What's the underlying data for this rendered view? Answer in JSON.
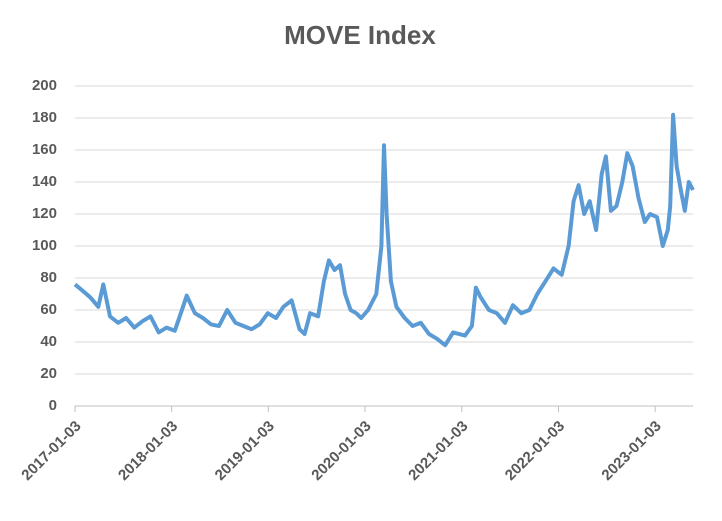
{
  "chart_data": {
    "type": "line",
    "title": "MOVE Index",
    "x": [
      "2017-01-03",
      "2017-02-01",
      "2017-03-01",
      "2017-04-01",
      "2017-04-20",
      "2017-05-15",
      "2017-06-15",
      "2017-07-15",
      "2017-08-15",
      "2017-09-15",
      "2017-10-15",
      "2017-11-15",
      "2017-12-15",
      "2018-01-15",
      "2018-02-15",
      "2018-03-01",
      "2018-04-01",
      "2018-05-01",
      "2018-06-01",
      "2018-07-01",
      "2018-08-01",
      "2018-09-01",
      "2018-10-01",
      "2018-11-01",
      "2018-12-01",
      "2019-01-01",
      "2019-02-01",
      "2019-03-01",
      "2019-04-01",
      "2019-05-01",
      "2019-05-20",
      "2019-06-10",
      "2019-07-10",
      "2019-08-01",
      "2019-08-20",
      "2019-09-10",
      "2019-10-01",
      "2019-10-20",
      "2019-11-10",
      "2019-12-01",
      "2019-12-20",
      "2020-01-15",
      "2020-02-15",
      "2020-03-05",
      "2020-03-15",
      "2020-03-25",
      "2020-04-10",
      "2020-05-01",
      "2020-06-01",
      "2020-07-01",
      "2020-08-01",
      "2020-09-01",
      "2020-10-01",
      "2020-11-01",
      "2020-12-01",
      "2021-01-15",
      "2021-02-10",
      "2021-02-25",
      "2021-03-15",
      "2021-04-15",
      "2021-05-15",
      "2021-06-15",
      "2021-07-15",
      "2021-08-15",
      "2021-09-15",
      "2021-10-15",
      "2021-11-15",
      "2021-12-15",
      "2022-01-15",
      "2022-02-10",
      "2022-03-01",
      "2022-03-20",
      "2022-04-10",
      "2022-05-01",
      "2022-05-25",
      "2022-06-15",
      "2022-07-01",
      "2022-07-20",
      "2022-08-10",
      "2022-09-01",
      "2022-09-20",
      "2022-10-10",
      "2022-11-01",
      "2022-11-25",
      "2022-12-15",
      "2023-01-10",
      "2023-02-01",
      "2023-02-20",
      "2023-03-01",
      "2023-03-12",
      "2023-03-25",
      "2023-04-10",
      "2023-04-25",
      "2023-05-10",
      "2023-05-26"
    ],
    "series": [
      {
        "name": "MOVE Index",
        "color": "#5b9bd5",
        "values": [
          76,
          72,
          68,
          62,
          76,
          56,
          52,
          55,
          49,
          53,
          56,
          46,
          49,
          47,
          62,
          69,
          58,
          55,
          51,
          50,
          60,
          52,
          50,
          48,
          51,
          58,
          55,
          62,
          66,
          48,
          45,
          58,
          56,
          78,
          91,
          85,
          88,
          70,
          60,
          58,
          55,
          60,
          70,
          100,
          163,
          120,
          78,
          62,
          55,
          50,
          52,
          45,
          42,
          38,
          46,
          44,
          50,
          74,
          68,
          60,
          58,
          52,
          63,
          58,
          60,
          70,
          78,
          86,
          82,
          100,
          128,
          138,
          120,
          128,
          110,
          145,
          156,
          122,
          125,
          140,
          158,
          150,
          130,
          115,
          120,
          118,
          100,
          110,
          125,
          182,
          150,
          135,
          122,
          140,
          135
        ]
      }
    ],
    "xlim": [
      "2017-01-03",
      "2023-05-26"
    ],
    "xticks": [
      "2017-01-03",
      "2018-01-03",
      "2019-01-03",
      "2020-01-03",
      "2021-01-03",
      "2022-01-03",
      "2023-01-03"
    ],
    "ylim": [
      0,
      200
    ],
    "yticks": [
      0,
      20,
      40,
      60,
      80,
      100,
      120,
      140,
      160,
      180,
      200
    ],
    "grid": true
  }
}
